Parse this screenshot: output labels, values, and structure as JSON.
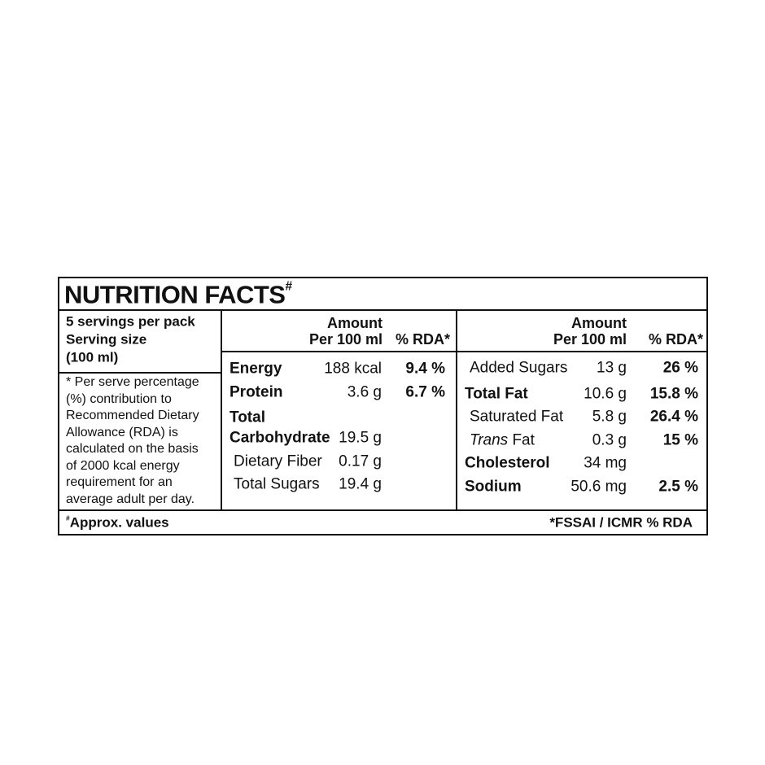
{
  "title": "NUTRITION FACTS",
  "title_mark": "#",
  "servings": {
    "lines": [
      "5 servings per pack",
      "Serving size",
      "(100 ml)"
    ]
  },
  "note": {
    "lines": [
      "* Per serve percentage",
      "(%) contribution to",
      "Recommended Dietary",
      "Allowance (RDA) is",
      "calculated on the basis",
      "of 2000 kcal energy",
      "requirement for an",
      "average adult per day."
    ]
  },
  "columns": [
    {
      "header": {
        "amount": "Amount",
        "per": "Per 100 ml",
        "rda": "% RDA*"
      },
      "rows": [
        {
          "label": "Energy",
          "bold": true,
          "amount": "188 kcal",
          "rda": "9.4 %"
        },
        {
          "label": "Protein",
          "bold": true,
          "amount": "3.6 g",
          "rda": "6.7 %"
        },
        {
          "label_lines": [
            "Total",
            "Carbohydrate"
          ],
          "bold": true,
          "amount": "19.5 g"
        },
        {
          "label": "Dietary Fiber",
          "indent": true,
          "amount": "0.17 g"
        },
        {
          "label": "Total Sugars",
          "indent": true,
          "amount": "19.4 g"
        }
      ]
    },
    {
      "header": {
        "amount": "Amount",
        "per": "Per 100 ml",
        "rda": "% RDA*"
      },
      "rows": [
        {
          "label": "Added Sugars",
          "indent": true,
          "amount": "13 g",
          "rda": "26 %"
        },
        {
          "label": "Total Fat",
          "bold": true,
          "amount": "10.6 g",
          "rda": "15.8 %"
        },
        {
          "label": "Saturated Fat",
          "indent": true,
          "amount": "5.8 g",
          "rda": "26.4 %"
        },
        {
          "label_italic": "Trans",
          "label": "Fat",
          "indent": true,
          "amount": "0.3 g",
          "rda": "15 %"
        },
        {
          "label": "Cholesterol",
          "bold": true,
          "amount": "34 mg"
        },
        {
          "label": "Sodium",
          "bold": true,
          "amount": "50.6 mg",
          "rda": "2.5 %"
        }
      ]
    }
  ],
  "footer": {
    "mark": "#",
    "approx": "Approx. values",
    "source": "*FSSAI / ICMR % RDA"
  }
}
